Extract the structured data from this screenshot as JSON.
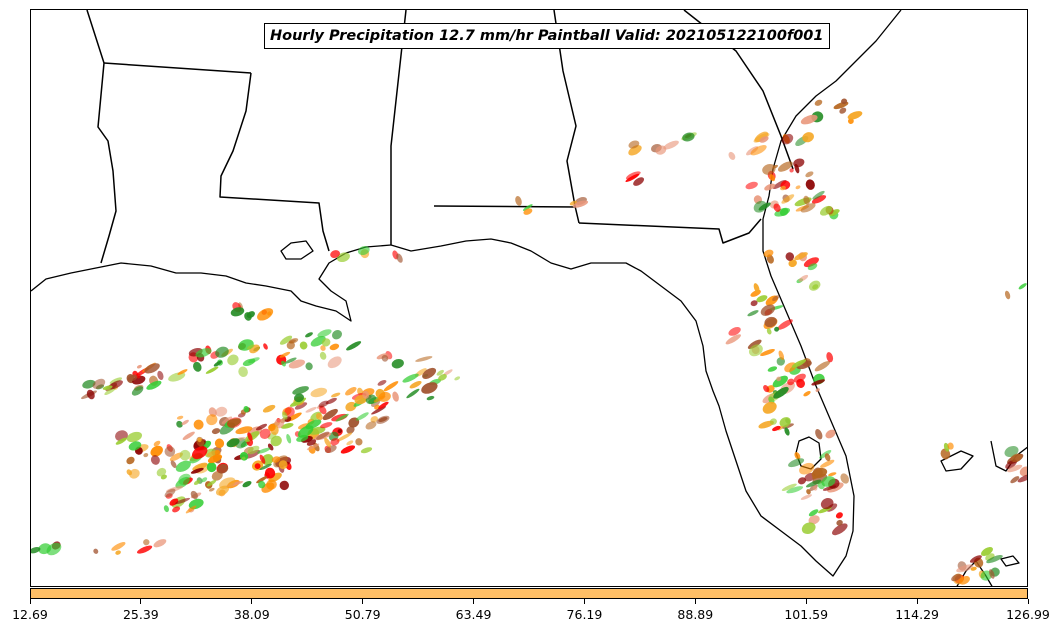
{
  "title": "Hourly Precipitation 12.7 mm/hr Paintball Valid: 202105122100f001",
  "colorbar": {
    "color": "#ffbf66",
    "tick_labels": [
      "12.69",
      "25.39",
      "38.09",
      "50.79",
      "63.49",
      "76.19",
      "88.89",
      "101.59",
      "114.29",
      "126.99"
    ]
  },
  "colors": {
    "coastline": "#000000",
    "paintball_palette": [
      "#ff0000",
      "#ff8c00",
      "#8b0000",
      "#228b22",
      "#9acd32",
      "#f5a623",
      "#b5651d",
      "#32cd32",
      "#e9967a",
      "#a0522d"
    ]
  }
}
